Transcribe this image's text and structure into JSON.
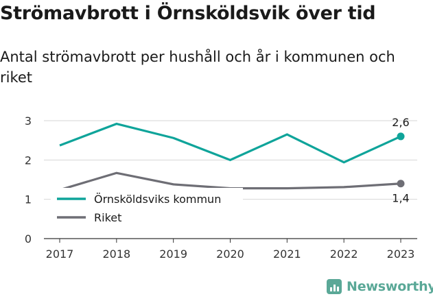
{
  "title": "Strömavbrott i Örnsköldsvik över tid",
  "subtitle": "Antal strömavbrott per hushåll och år i kommunen och riket",
  "brand": "Newsworthy",
  "colors": {
    "kommun": "#0fa49a",
    "riket": "#6e6e75",
    "grid": "#d6d6d6",
    "axis": "#333333",
    "brand": "#5aa897"
  },
  "chart_data": {
    "type": "line",
    "x": [
      "2017",
      "2018",
      "2019",
      "2020",
      "2021",
      "2022",
      "2023"
    ],
    "ylim": [
      0,
      3
    ],
    "yticks": [
      "0",
      "1",
      "2",
      "3"
    ],
    "grid": true,
    "legend_position": "bottom-left inside plot",
    "series": [
      {
        "name": "Örnsköldsviks kommun",
        "color": "#0fa49a",
        "values": [
          2.37,
          2.92,
          2.56,
          2.0,
          2.65,
          1.94,
          2.6
        ],
        "end_label": "2,6"
      },
      {
        "name": "Riket",
        "color": "#6e6e75",
        "values": [
          1.24,
          1.67,
          1.38,
          1.28,
          1.28,
          1.31,
          1.4
        ],
        "end_label": "1,4"
      }
    ]
  }
}
